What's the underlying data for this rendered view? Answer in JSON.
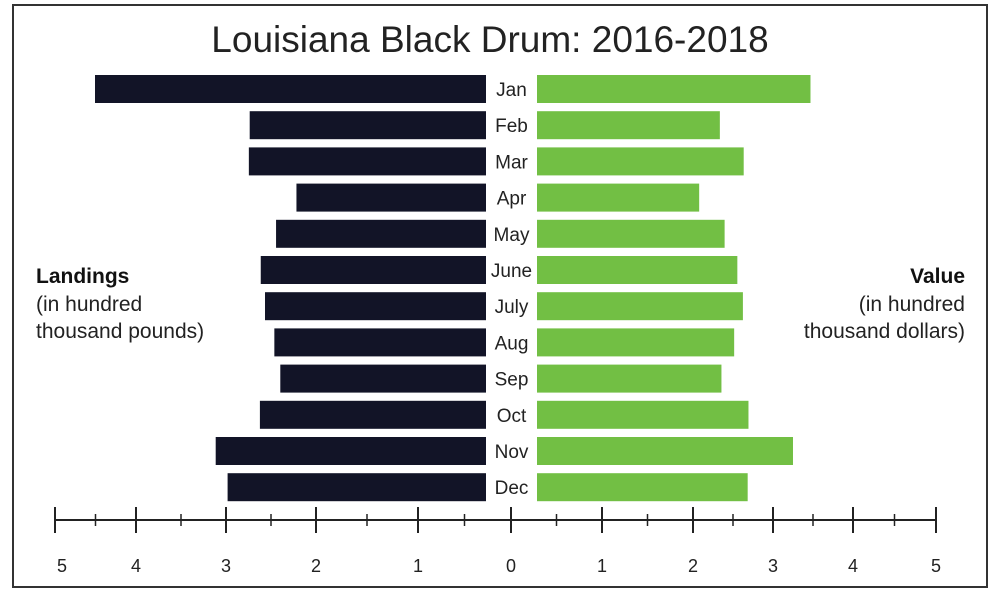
{
  "chart_data": {
    "type": "bar",
    "title": "Louisiana Black Drum: 2016-2018",
    "categories": [
      "Jan",
      "Feb",
      "Mar",
      "Apr",
      "May",
      "June",
      "July",
      "Aug",
      "Sep",
      "Oct",
      "Nov",
      "Dec"
    ],
    "series": [
      {
        "name": "Landings",
        "values": [
          4.6,
          2.78,
          2.79,
          2.23,
          2.47,
          2.65,
          2.6,
          2.49,
          2.42,
          2.66,
          3.18,
          3.04
        ]
      },
      {
        "name": "Value",
        "values": [
          3.44,
          2.3,
          2.6,
          2.04,
          2.36,
          2.52,
          2.59,
          2.48,
          2.32,
          2.66,
          3.22,
          2.65
        ]
      }
    ],
    "colors": {
      "landings": "#121427",
      "value": "#72bf44"
    },
    "left_label": {
      "title": "Landings",
      "lines": [
        "(in hundred",
        "thousand pounds)"
      ]
    },
    "right_label": {
      "title": "Value",
      "lines": [
        "(in hundred",
        "thousand dollars)"
      ]
    },
    "xlim": [
      0,
      5
    ],
    "tick_labels": [
      "5",
      "4",
      "3",
      "2",
      "1",
      "0",
      "1",
      "2",
      "3",
      "4",
      "5"
    ]
  }
}
